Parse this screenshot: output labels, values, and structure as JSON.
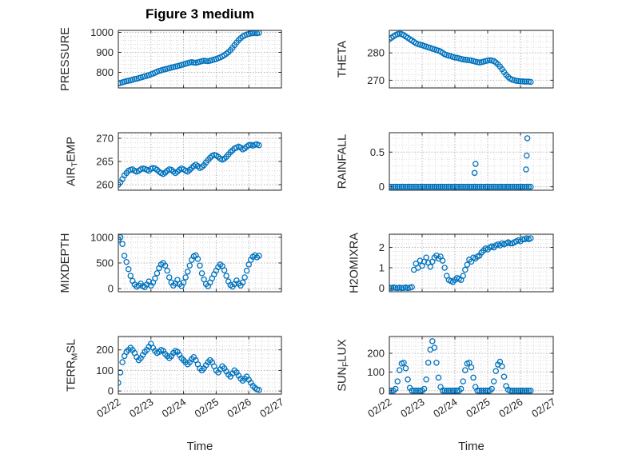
{
  "figure": {
    "title": "Figure 3 medium"
  },
  "colors": {
    "marker": "#0072BD",
    "axis": "#262626",
    "text": "#262626",
    "grid_major": "#b8b8b8",
    "grid_minor": "#dcdcdc"
  },
  "chart_data": {
    "type": "scatter",
    "figure_title": "Figure 3 medium",
    "marker": {
      "shape": "open-circle",
      "color": "#0072BD"
    },
    "x_axis": {
      "label": "Time",
      "min": 0,
      "max": 5,
      "ticks": [
        0,
        1,
        2,
        3,
        4,
        5
      ],
      "tick_labels": [
        "02/22",
        "02/23",
        "02/24",
        "02/25",
        "02/26",
        "02/27"
      ],
      "minor_step": 0.2,
      "tick_label_rotation_deg": -33,
      "unit": "days since 02/22"
    },
    "x_shared": [
      0,
      0.0625,
      0.125,
      0.1875,
      0.25,
      0.3125,
      0.375,
      0.4375,
      0.5,
      0.5625,
      0.625,
      0.6875,
      0.75,
      0.8125,
      0.875,
      0.9375,
      1,
      1.0625,
      1.125,
      1.1875,
      1.25,
      1.3125,
      1.375,
      1.4375,
      1.5,
      1.5625,
      1.625,
      1.6875,
      1.75,
      1.8125,
      1.875,
      1.9375,
      2,
      2.0625,
      2.125,
      2.1875,
      2.25,
      2.3125,
      2.375,
      2.4375,
      2.5,
      2.5625,
      2.625,
      2.6875,
      2.75,
      2.8125,
      2.875,
      2.9375,
      3,
      3.0625,
      3.125,
      3.1875,
      3.25,
      3.3125,
      3.375,
      3.4375,
      3.5,
      3.5625,
      3.625,
      3.6875,
      3.75,
      3.8125,
      3.875,
      3.9375,
      4,
      4.0625,
      4.125,
      4.1875,
      4.25,
      4.3125
    ],
    "subplots": [
      {
        "name": "PRESSURE",
        "ylabel": "PRESSURE",
        "ylabel_parts": [
          {
            "t": "PRESSURE"
          }
        ],
        "yticks": [
          800,
          900,
          1000
        ],
        "ylim": [
          722,
          1010
        ],
        "yminor": 20,
        "y": [
          745,
          747,
          750,
          753,
          756,
          758,
          760,
          763,
          766,
          768,
          771,
          774,
          777,
          780,
          783,
          786,
          790,
          794,
          798,
          803,
          807,
          810,
          813,
          816,
          818,
          821,
          824,
          826,
          829,
          831,
          834,
          837,
          840,
          843,
          846,
          849,
          851,
          849,
          848,
          850,
          853,
          856,
          858,
          857,
          856,
          858,
          861,
          864,
          867,
          871,
          875,
          880,
          886,
          893,
          901,
          911,
          923,
          936,
          949,
          961,
          971,
          979,
          985,
          989,
          992,
          995,
          996,
          997,
          996,
          998
        ]
      },
      {
        "name": "THETA",
        "ylabel": "THETA",
        "ylabel_parts": [
          {
            "t": "THETA"
          }
        ],
        "yticks": [
          270,
          280
        ],
        "ylim": [
          267.2,
          288.2
        ],
        "yminor": 2,
        "y": [
          285,
          285.5,
          286,
          286.5,
          286.8,
          287,
          286.8,
          286.5,
          286,
          285.5,
          285,
          284.5,
          284,
          283.5,
          283.2,
          283,
          282.8,
          282.5,
          282.3,
          282,
          281.8,
          281.5,
          281.3,
          281,
          280.8,
          280.5,
          280,
          279.5,
          279.2,
          279,
          278.8,
          278.5,
          278.3,
          278.2,
          278,
          277.8,
          277.6,
          277.5,
          277.4,
          277.3,
          277.2,
          277,
          276.8,
          276.6,
          276.5,
          276.6,
          276.8,
          277,
          277.2,
          277.3,
          277.2,
          277,
          276.5,
          275.8,
          275,
          274,
          273,
          272,
          271.2,
          270.6,
          270.2,
          270,
          269.8,
          269.7,
          269.6,
          269.6,
          269.5,
          269.5,
          269.5,
          269.4
        ]
      },
      {
        "name": "AIR_TEMP",
        "ylabel": "AIR_TEMP",
        "ylabel_parts": [
          {
            "t": "AIR"
          },
          {
            "t": "T",
            "sub": true
          },
          {
            "t": "EMP"
          }
        ],
        "yticks": [
          260,
          265,
          270
        ],
        "ylim": [
          258.8,
          271.2
        ],
        "yminor": 1,
        "y": [
          260,
          260.5,
          261.2,
          262,
          262.5,
          263,
          263.2,
          263.3,
          263,
          262.8,
          263,
          263.3,
          263.5,
          263.4,
          263.2,
          263,
          263.4,
          263.6,
          263.5,
          263.2,
          262.8,
          262.5,
          262.3,
          262.6,
          263,
          263.3,
          263.2,
          262.8,
          262.5,
          262.8,
          263.2,
          263.5,
          263.3,
          263,
          262.8,
          263.2,
          263.6,
          264,
          264.3,
          264,
          263.6,
          263.8,
          264.2,
          264.8,
          265.3,
          265.8,
          266.2,
          266.4,
          266.3,
          266,
          265.6,
          265.4,
          265.6,
          266,
          266.5,
          267,
          267.4,
          267.8,
          268,
          268.2,
          268,
          267.6,
          267.8,
          268.2,
          268.5,
          268.6,
          268.4,
          268.6,
          268.7,
          268.5
        ]
      },
      {
        "name": "RAINFALL",
        "ylabel": "RAINFALL",
        "ylabel_parts": [
          {
            "t": "RAINFALL"
          }
        ],
        "yticks": [
          0,
          0.5
        ],
        "ylim": [
          -0.05,
          0.78
        ],
        "yminor": 0.1,
        "y": [
          0,
          0,
          0,
          0,
          0,
          0,
          0,
          0,
          0,
          0,
          0,
          0,
          0,
          0,
          0,
          0,
          0,
          0,
          0,
          0,
          0,
          0,
          0,
          0,
          0,
          0,
          0,
          0,
          0,
          0,
          0,
          0,
          0,
          0,
          0,
          0,
          0,
          0,
          0,
          0,
          0,
          0,
          0,
          0,
          0,
          0,
          0,
          0,
          0,
          0,
          0,
          0,
          0,
          0,
          0,
          0,
          0,
          0,
          0,
          0,
          0,
          0,
          0,
          0,
          0,
          0,
          0,
          0,
          0,
          0
        ],
        "extra_x": [
          2.6,
          2.63,
          4.17,
          4.19,
          4.21
        ],
        "extra_y": [
          0.2,
          0.33,
          0.25,
          0.45,
          0.7
        ]
      },
      {
        "name": "MIXDEPTH",
        "ylabel": "MIXDEPTH",
        "ylabel_parts": [
          {
            "t": "MIXDEPTH"
          }
        ],
        "yticks": [
          0,
          500,
          1000
        ],
        "ylim": [
          -60,
          1060
        ],
        "yminor": 100,
        "y": [
          950,
          1000,
          870,
          640,
          520,
          380,
          250,
          150,
          80,
          40,
          60,
          100,
          50,
          30,
          80,
          140,
          60,
          120,
          200,
          300,
          400,
          470,
          500,
          450,
          350,
          220,
          120,
          60,
          100,
          170,
          90,
          50,
          120,
          220,
          330,
          450,
          560,
          630,
          650,
          580,
          450,
          300,
          180,
          90,
          50,
          120,
          200,
          280,
          350,
          420,
          470,
          440,
          360,
          250,
          140,
          70,
          40,
          90,
          160,
          100,
          60,
          120,
          220,
          350,
          470,
          560,
          620,
          650,
          610,
          640
        ]
      },
      {
        "name": "H2OMIXRA",
        "ylabel": "H2OMIXRA",
        "ylabel_parts": [
          {
            "t": "H2OMIXRA"
          }
        ],
        "yticks": [
          0,
          1,
          2
        ],
        "ylim": [
          -0.18,
          2.65
        ],
        "yminor": 0.2,
        "y": [
          0.02,
          0,
          0.03,
          0.01,
          0,
          0.02,
          0,
          0.01,
          0.03,
          0,
          0.02,
          0.05,
          0.9,
          1.2,
          1,
          1.35,
          1.1,
          1.3,
          1.5,
          1.25,
          1.05,
          1.3,
          1.5,
          1.6,
          1.45,
          1.55,
          1.35,
          1,
          0.6,
          0.4,
          0.35,
          0.3,
          0.4,
          0.5,
          0.45,
          0.4,
          0.6,
          0.9,
          1.15,
          1.4,
          1.3,
          1.5,
          1.45,
          1.55,
          1.6,
          1.75,
          1.85,
          1.95,
          1.9,
          2,
          2.05,
          2,
          2.1,
          2.15,
          2.1,
          2.2,
          2.15,
          2.2,
          2.25,
          2.2,
          2.2,
          2.25,
          2.3,
          2.35,
          2.3,
          2.4,
          2.4,
          2.45,
          2.4,
          2.45
        ]
      },
      {
        "name": "TERR_MSL",
        "ylabel": "TERR_MSL",
        "ylabel_parts": [
          {
            "t": "TERR"
          },
          {
            "t": "M",
            "sub": true
          },
          {
            "t": "SL"
          }
        ],
        "yticks": [
          0,
          100,
          200
        ],
        "ylim": [
          -15,
          265
        ],
        "yminor": 20,
        "y": [
          40,
          90,
          140,
          170,
          190,
          200,
          210,
          200,
          185,
          165,
          150,
          160,
          175,
          190,
          200,
          215,
          230,
          210,
          195,
          185,
          190,
          200,
          195,
          180,
          170,
          160,
          170,
          185,
          195,
          190,
          175,
          160,
          150,
          140,
          130,
          140,
          155,
          165,
          150,
          130,
          110,
          100,
          110,
          125,
          140,
          150,
          140,
          120,
          100,
          90,
          105,
          120,
          110,
          95,
          80,
          70,
          85,
          100,
          90,
          75,
          60,
          50,
          60,
          70,
          55,
          40,
          25,
          15,
          8,
          5
        ]
      },
      {
        "name": "SUN_FLUX",
        "ylabel": "SUN_FLUX",
        "ylabel_parts": [
          {
            "t": "SUN"
          },
          {
            "t": "F",
            "sub": true
          },
          {
            "t": "LUX"
          }
        ],
        "yticks": [
          0,
          100,
          200
        ],
        "ylim": [
          -18,
          290
        ],
        "yminor": 20,
        "y": [
          0,
          0,
          0,
          10,
          50,
          110,
          145,
          150,
          120,
          60,
          15,
          0,
          0,
          0,
          0,
          0,
          0,
          10,
          60,
          150,
          220,
          265,
          230,
          150,
          70,
          20,
          0,
          0,
          0,
          0,
          0,
          0,
          0,
          0,
          0,
          10,
          50,
          110,
          145,
          150,
          125,
          70,
          20,
          0,
          0,
          0,
          0,
          0,
          0,
          0,
          10,
          50,
          105,
          140,
          155,
          130,
          75,
          25,
          5,
          0,
          0,
          0,
          0,
          0,
          0,
          0,
          0,
          0,
          0,
          0
        ]
      }
    ]
  }
}
